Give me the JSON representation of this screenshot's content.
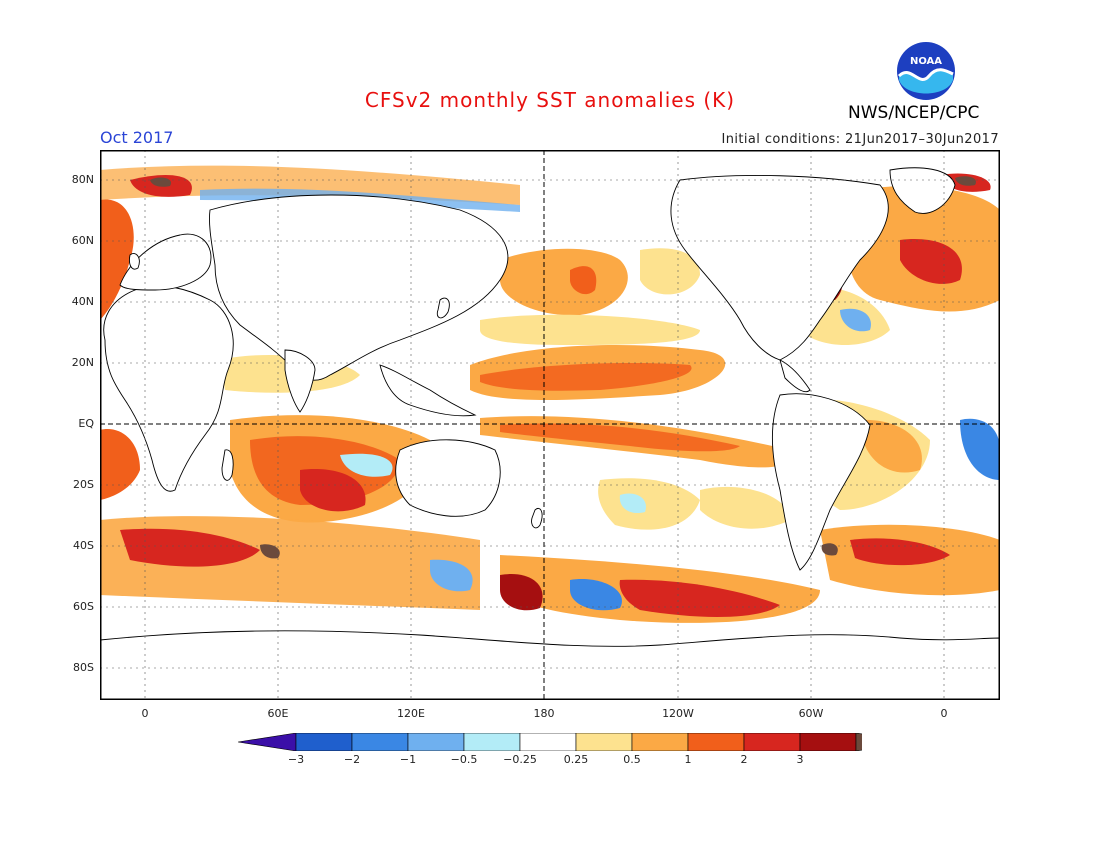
{
  "header": {
    "title": "CFSv2 monthly SST anomalies (K)",
    "org": "NWS/NCEP/CPC",
    "month": "Oct 2017",
    "initial_conditions": "Initial conditions: 21Jun2017–30Jun2017",
    "logo_text": "NOAA"
  },
  "map": {
    "lat_labels": [
      "80N",
      "60N",
      "40N",
      "20N",
      "EQ",
      "20S",
      "40S",
      "60S",
      "80S"
    ],
    "lon_labels": [
      "0",
      "60E",
      "120E",
      "180",
      "120W",
      "60W",
      "0"
    ]
  },
  "colorbar": {
    "labels": [
      "−3",
      "−2",
      "−1",
      "−0.5",
      "−0.25",
      "0.25",
      "0.5",
      "1",
      "2",
      "3"
    ],
    "colors": [
      "#3b0fa8",
      "#1f5fcd",
      "#3a87e4",
      "#6fb0ef",
      "#b3ecf7",
      "#ffffff",
      "#fde28f",
      "#fba945",
      "#f15f1b",
      "#d7261f",
      "#a50f10",
      "#6b4a3c"
    ]
  }
}
